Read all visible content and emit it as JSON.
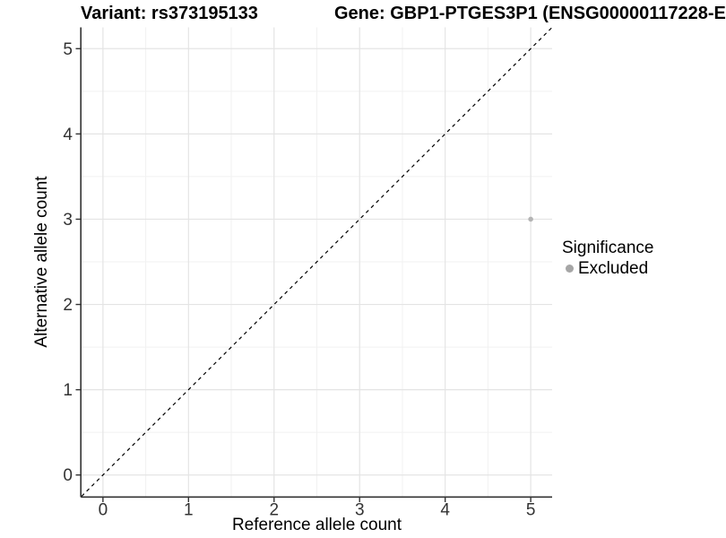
{
  "titles": {
    "variant": "Variant: rs373195133",
    "gene": "Gene: GBP1-PTGES3P1 (ENSG00000117228-E"
  },
  "chart_data": {
    "type": "scatter",
    "title": "Variant: rs373195133 / Gene: GBP1-PTGES3P1 (ENSG00000117228-E…)",
    "xlabel": "Reference allele count",
    "ylabel": "Alternative allele count",
    "xlim": [
      -0.25,
      5.25
    ],
    "ylim": [
      -0.25,
      5.25
    ],
    "xticks": [
      0,
      1,
      2,
      3,
      4,
      5
    ],
    "yticks": [
      0,
      1,
      2,
      3,
      4,
      5
    ],
    "grid": "major-and-minor",
    "reference_line": {
      "type": "identity",
      "from": [
        -0.25,
        -0.25
      ],
      "to": [
        5.25,
        5.25
      ],
      "style": "dashed",
      "color": "#000000"
    },
    "series": [
      {
        "name": "Excluded",
        "color": "#b4b4b4",
        "points": [
          {
            "x": 5,
            "y": 3
          }
        ]
      }
    ],
    "legend": {
      "title": "Significance",
      "position": "right",
      "entries": [
        {
          "label": "Excluded",
          "color": "#a6a6a6"
        }
      ]
    },
    "colors": {
      "axis_line": "#333333",
      "tick_label": "#333333",
      "grid_major": "#e4e4e4",
      "grid_minor": "#f1f1f1",
      "point": "#b4b4b4"
    }
  }
}
